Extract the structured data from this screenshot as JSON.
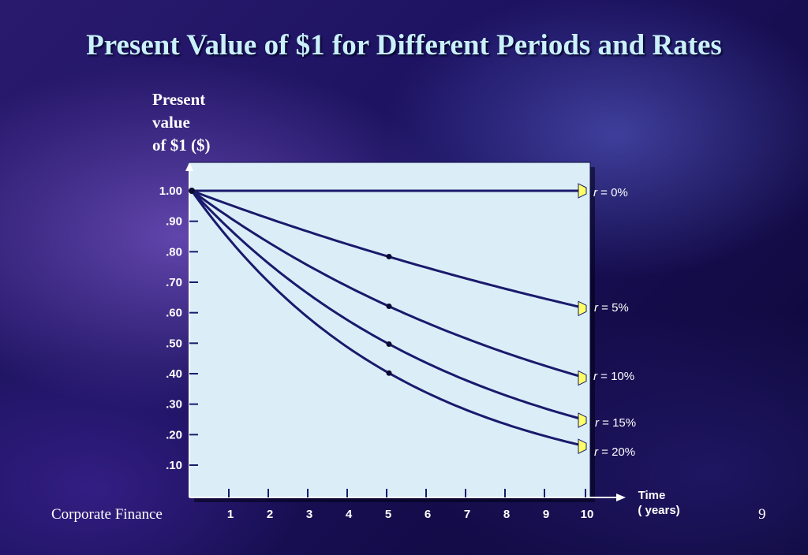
{
  "slide": {
    "title": "Present Value of $1 for Different Periods and Rates",
    "footer_left": "Corporate Finance",
    "page_number": "9"
  },
  "colors": {
    "plot_background": "#dbeef8",
    "line": "#1a1a6c",
    "arrow_fill": "#ffff66",
    "title": "#c9f0fb"
  },
  "chart_data": {
    "type": "line",
    "ylabel": "Present\nvalue\nof $1 ($)",
    "xlabel_line1": "Time",
    "xlabel_line2": "( years)",
    "x_ticks": [
      1,
      2,
      3,
      4,
      5,
      6,
      7,
      8,
      9,
      10
    ],
    "y_ticks": [
      {
        "value": 1.0,
        "label": "1.00"
      },
      {
        "value": 0.9,
        "label": ".90"
      },
      {
        "value": 0.8,
        "label": ".80"
      },
      {
        "value": 0.7,
        "label": ".70"
      },
      {
        "value": 0.6,
        "label": ".60"
      },
      {
        "value": 0.5,
        "label": ".50"
      },
      {
        "value": 0.4,
        "label": ".40"
      },
      {
        "value": 0.3,
        "label": ".30"
      },
      {
        "value": 0.2,
        "label": ".20"
      },
      {
        "value": 0.1,
        "label": ".10"
      }
    ],
    "xlim": [
      0,
      10
    ],
    "grid": false,
    "series": [
      {
        "label_var": "r",
        "label_rest": " = 0%",
        "rate": 0.0,
        "x": [
          0,
          5,
          10
        ],
        "y": [
          1.0,
          1.0,
          1.0
        ]
      },
      {
        "label_var": "r",
        "label_rest": " = 5%",
        "rate": 0.05,
        "x": [
          0,
          1,
          2,
          3,
          4,
          5,
          6,
          7,
          8,
          9,
          10
        ],
        "y": [
          1.0,
          0.952,
          0.907,
          0.864,
          0.823,
          0.784,
          0.746,
          0.711,
          0.677,
          0.645,
          0.614
        ]
      },
      {
        "label_var": "r",
        "label_rest": " = 10%",
        "rate": 0.1,
        "x": [
          0,
          1,
          2,
          3,
          4,
          5,
          6,
          7,
          8,
          9,
          10
        ],
        "y": [
          1.0,
          0.909,
          0.826,
          0.751,
          0.683,
          0.621,
          0.564,
          0.513,
          0.467,
          0.424,
          0.386
        ]
      },
      {
        "label_var": "r",
        "label_rest": " = 15%",
        "rate": 0.15,
        "x": [
          0,
          1,
          2,
          3,
          4,
          5,
          6,
          7,
          8,
          9,
          10
        ],
        "y": [
          1.0,
          0.87,
          0.756,
          0.658,
          0.572,
          0.497,
          0.432,
          0.376,
          0.327,
          0.284,
          0.247
        ]
      },
      {
        "label_var": "r",
        "label_rest": " = 20%",
        "rate": 0.2,
        "x": [
          0,
          1,
          2,
          3,
          4,
          5,
          6,
          7,
          8,
          9,
          10
        ],
        "y": [
          1.0,
          0.833,
          0.694,
          0.579,
          0.482,
          0.402,
          0.335,
          0.279,
          0.233,
          0.194,
          0.162
        ]
      }
    ],
    "marked_points": [
      {
        "x": 0,
        "y": 1.0
      },
      {
        "x": 5,
        "y": 0.784
      },
      {
        "x": 5,
        "y": 0.621
      },
      {
        "x": 5,
        "y": 0.497
      },
      {
        "x": 5,
        "y": 0.402
      }
    ]
  }
}
